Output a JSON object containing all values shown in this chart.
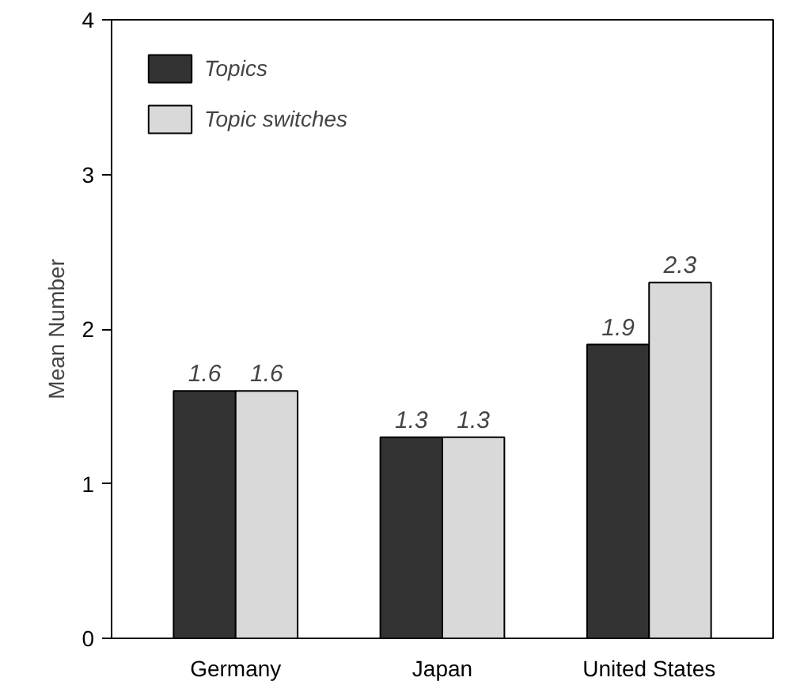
{
  "chart_data": {
    "type": "bar",
    "ylabel": "Mean Number",
    "categories": [
      "Germany",
      "Japan",
      "United States"
    ],
    "series": [
      {
        "name": "Topics",
        "color": "#333333",
        "values": [
          1.6,
          1.3,
          1.9
        ]
      },
      {
        "name": "Topic switches",
        "color": "#d9d9d9",
        "values": [
          1.6,
          1.3,
          2.3
        ]
      }
    ],
    "ylim": [
      0,
      4
    ],
    "yticks": [
      0,
      1,
      2,
      3,
      4
    ],
    "data_labels": true,
    "legend": "top left",
    "grid": false
  }
}
